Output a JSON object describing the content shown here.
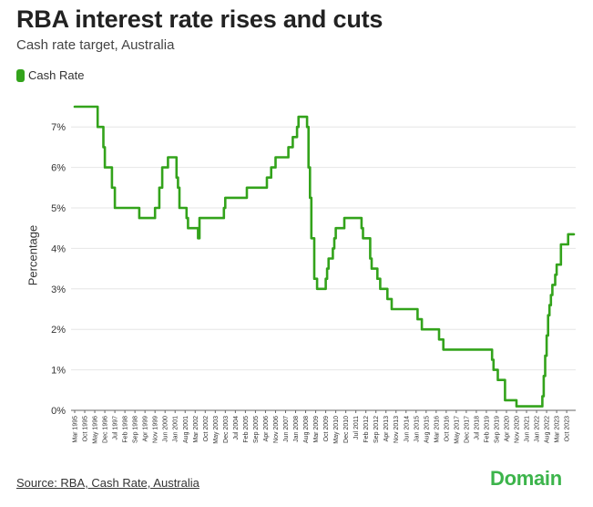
{
  "header": {
    "title": "RBA interest rate rises and cuts",
    "subtitle": "Cash rate target, Australia"
  },
  "footer": {
    "source": "Source: RBA, Cash Rate, Australia",
    "brand": "Domain"
  },
  "chart_data": {
    "type": "line",
    "title": "RBA interest rate rises and cuts",
    "subtitle": "Cash rate target, Australia",
    "ylabel": "Percentage",
    "xlabel": "",
    "ylim": [
      0,
      7.5
    ],
    "yticks": [
      0,
      1,
      2,
      3,
      4,
      5,
      6,
      7
    ],
    "ytick_format": "%",
    "grid": true,
    "legend": "top-left",
    "colors": {
      "Cash Rate": "#33a31b"
    },
    "xtick_labels": [
      "Mar 1995",
      "Oct 1995",
      "May 1996",
      "Dec 1996",
      "Jul 1997",
      "Feb 1998",
      "Sep 1998",
      "Apr 1999",
      "Nov 1999",
      "Jun 2000",
      "Jan 2001",
      "Aug 2001",
      "Mar 2002",
      "Oct 2002",
      "May 2003",
      "Dec 2003",
      "Jul 2004",
      "Feb 2005",
      "Sep 2005",
      "Apr 2006",
      "Nov 2006",
      "Jun 2007",
      "Jan 2008",
      "Aug 2008",
      "Mar 2009",
      "Oct 2009",
      "May 2010",
      "Dec 2010",
      "Jul 2011",
      "Feb 2012",
      "Sep 2012",
      "Apr 2013",
      "Nov 2013",
      "Jun 2014",
      "Jan 2015",
      "Aug 2015",
      "Mar 2016",
      "Oct 2016",
      "May 2017",
      "Dec 2017",
      "Jul 2018",
      "Feb 2019",
      "Sep 2019",
      "Apr 2020",
      "Nov 2020",
      "Jun 2021",
      "Jan 2022",
      "Aug 2022",
      "Mar 2023",
      "Oct 2023"
    ],
    "series": [
      {
        "name": "Cash Rate",
        "x": [
          "1995-03",
          "1996-07",
          "1996-11",
          "1996-12",
          "1997-05",
          "1997-07",
          "1997-08",
          "1998-12",
          "1999-11",
          "2000-02",
          "2000-04",
          "2000-08",
          "2001-02",
          "2001-03",
          "2001-04",
          "2001-09",
          "2001-10",
          "2002-05",
          "2002-06",
          "2003-11",
          "2003-12",
          "2005-03",
          "2006-05",
          "2006-08",
          "2006-11",
          "2007-08",
          "2007-11",
          "2008-02",
          "2008-03",
          "2008-09",
          "2008-10",
          "2008-11",
          "2008-12",
          "2009-02",
          "2009-04",
          "2009-10",
          "2009-11",
          "2009-12",
          "2010-03",
          "2010-04",
          "2010-05",
          "2010-11",
          "2011-11",
          "2011-12",
          "2012-05",
          "2012-06",
          "2012-10",
          "2012-12",
          "2013-05",
          "2013-08",
          "2015-02",
          "2015-05",
          "2016-05",
          "2016-08",
          "2019-06",
          "2019-07",
          "2019-10",
          "2020-03",
          "2020-11",
          "2022-05",
          "2022-06",
          "2022-07",
          "2022-08",
          "2022-09",
          "2022-10",
          "2022-11",
          "2022-12",
          "2023-02",
          "2023-03",
          "2023-06",
          "2023-11",
          "2024-03"
        ],
        "y": [
          7.5,
          7.0,
          6.5,
          6.0,
          5.5,
          5.0,
          5.0,
          4.75,
          5.0,
          5.5,
          6.0,
          6.25,
          5.75,
          5.5,
          5.0,
          4.75,
          4.5,
          4.25,
          4.75,
          5.0,
          5.25,
          5.5,
          5.75,
          6.0,
          6.25,
          6.5,
          6.75,
          7.0,
          7.25,
          7.0,
          6.0,
          5.25,
          4.25,
          3.25,
          3.0,
          3.25,
          3.5,
          3.75,
          4.0,
          4.25,
          4.5,
          4.75,
          4.5,
          4.25,
          3.75,
          3.5,
          3.25,
          3.0,
          2.75,
          2.5,
          2.25,
          2.0,
          1.75,
          1.5,
          1.25,
          1.0,
          0.75,
          0.25,
          0.1,
          0.35,
          0.85,
          1.35,
          1.85,
          2.35,
          2.6,
          2.85,
          3.1,
          3.35,
          3.6,
          4.1,
          4.35,
          4.35
        ]
      }
    ]
  }
}
